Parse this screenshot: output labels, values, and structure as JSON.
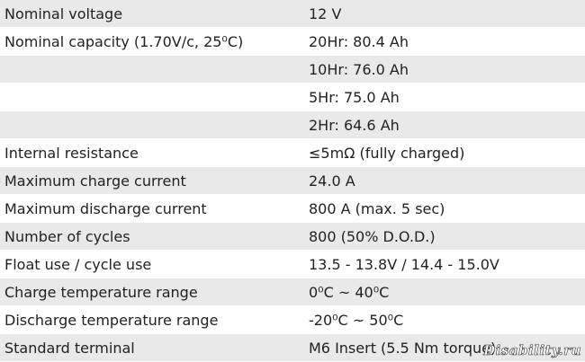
{
  "table": {
    "rows": [
      [
        "Nominal voltage",
        "12 V"
      ],
      [
        "Nominal capacity (1.70V/c, 25⁰C)",
        "20Hr: 80.4 Ah"
      ],
      [
        null,
        "10Hr: 76.0 Ah"
      ],
      [
        null,
        "5Hr: 75.0 Ah"
      ],
      [
        null,
        "2Hr: 64.6 Ah"
      ],
      [
        "Internal resistance",
        "≤5mΩ (fully charged)"
      ],
      [
        "Maximum charge current",
        "24.0 A"
      ],
      [
        "Maximum discharge current",
        "800 A (max. 5 sec)"
      ],
      [
        "Number of cycles",
        "800 (50% D.O.D.)"
      ],
      [
        "Float use / cycle use",
        "13.5 - 13.8V / 14.4 - 15.0V"
      ],
      [
        "Charge temperature range",
        "0⁰C ~ 40⁰C"
      ],
      [
        "Discharge temperature range",
        "-20⁰C ~ 50⁰C"
      ],
      [
        "Standard terminal",
        "M6 Insert (5.5 Nm torque)"
      ]
    ]
  },
  "watermark": "Disability.ru"
}
